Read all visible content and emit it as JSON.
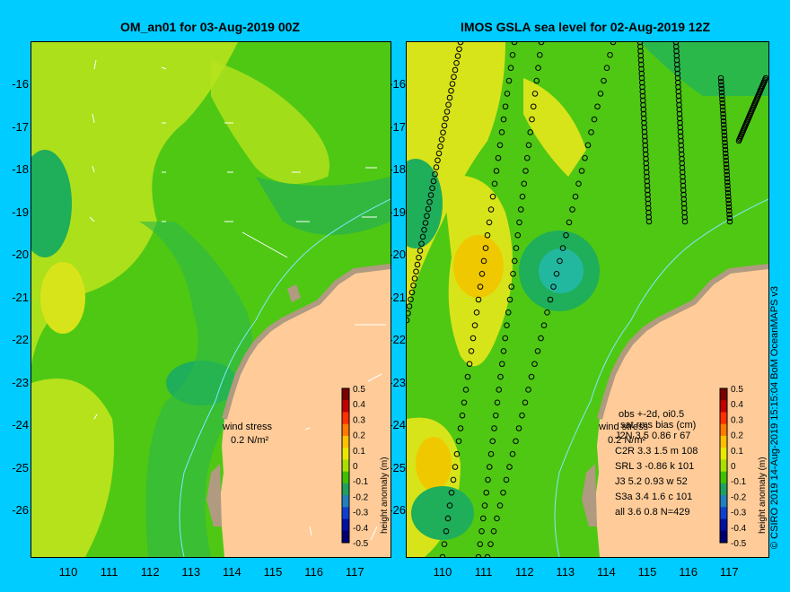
{
  "left_panel": {
    "title": "OM_an01 for 03-Aug-2019 00Z",
    "wind_label": "wind stress",
    "wind_scale": "0.2 N/m²"
  },
  "right_panel": {
    "title": "IMOS GSLA sea level  for 02-Aug-2019 12Z",
    "wind_label": "wind stress",
    "wind_scale": "0.2 N/m²",
    "stats_header_1": "obs +-2d, oi0.5",
    "stats_header_2": "sat rms bias (cm)",
    "stats": [
      "J2N   3.5 0.86 r 67",
      "C2R   3.3 1.5 m 108",
      "SRL    3 -0.86 k 101",
      "J3     5.2 0.93 w 52",
      "S3a   3.4 1.6 c 101",
      "all   3.6 0.8 N=429"
    ]
  },
  "axes": {
    "lat_ticks": [
      "-16",
      "-17",
      "-18",
      "-19",
      "-20",
      "-21",
      "-22",
      "-23",
      "-24",
      "-25",
      "-26"
    ],
    "lon_ticks": [
      "110",
      "111",
      "112",
      "113",
      "114",
      "115",
      "116",
      "117"
    ]
  },
  "colorbar": {
    "label": "height anomaly (m)",
    "ticks": [
      "0.5",
      "0.4",
      "0.3",
      "0.2",
      "0.1",
      "0",
      "-0.1",
      "-0.2",
      "-0.3",
      "-0.4",
      "-0.5"
    ]
  },
  "credit": "© CSIRO 2019   14-Aug-2019 15:15:04 BoM OceanMAPS v3",
  "colors": {
    "background": "#00ccff",
    "land": "#ffcc99",
    "coast": "#b09a80",
    "field_low": "#1fae5a",
    "field_mid": "#4fc814",
    "field_high": "#f0d000"
  }
}
